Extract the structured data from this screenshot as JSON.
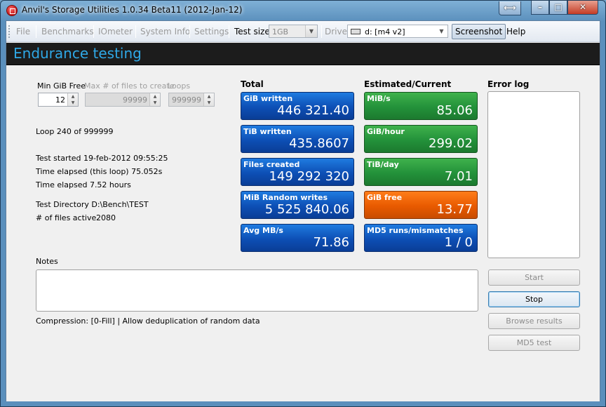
{
  "window": {
    "title": "Anvil's Storage Utilities 1.0.34 Beta11 (2012-Jan-12)",
    "controls": {
      "resize": "⟷",
      "minimize": "–",
      "maximize": "□",
      "close": "✕"
    }
  },
  "menu": {
    "file": "File",
    "benchmarks": "Benchmarks",
    "iometer": "IOmeter",
    "system_info": "System Info",
    "settings": "Settings",
    "test_size_label": "Test size",
    "test_size_value": "1GB",
    "drive_label": "Drive",
    "drive_value": "d: [m4 v2]",
    "screenshot": "Screenshot",
    "help": "Help"
  },
  "header": {
    "title": "Endurance testing"
  },
  "params": {
    "min_free_label": "Min GiB Free",
    "min_free_value": "12",
    "max_files_label": "Max # of files to create",
    "max_files_value": "99999",
    "loops_label": "Loops",
    "loops_value": "999999"
  },
  "status": {
    "loop": "Loop 240 of 999999",
    "test_started": "Test started 19-feb-2012 09:55:25",
    "elapsed_loop": "Time elapsed (this loop) 75.052s",
    "elapsed": "Time elapsed 7.52 hours",
    "test_dir": "Test Directory D:\\Bench\\TEST",
    "files_active_label": "# of files active",
    "files_active_value": "2080"
  },
  "total": {
    "heading": "Total",
    "tiles": [
      {
        "label": "GiB written",
        "value": "446 321.40"
      },
      {
        "label": "TiB written",
        "value": "435.8607"
      },
      {
        "label": "Files created",
        "value": "149 292 320"
      },
      {
        "label": "MiB Random writes",
        "value": "5 525 840.06"
      },
      {
        "label": "Avg MB/s",
        "value": "71.86"
      }
    ]
  },
  "estimated": {
    "heading": "Estimated/Current",
    "tiles": [
      {
        "label": "MiB/s",
        "value": "85.06"
      },
      {
        "label": "GiB/hour",
        "value": "299.02"
      },
      {
        "label": "TiB/day",
        "value": "7.01"
      },
      {
        "label": "GiB free",
        "value": "13.77"
      },
      {
        "label": "MD5 runs/mismatches",
        "value": "1 / 0"
      }
    ]
  },
  "error_log": {
    "heading": "Error log"
  },
  "notes": {
    "label": "Notes",
    "compression": "Compression: [0-Fill] | Allow deduplication of random data"
  },
  "buttons": {
    "start": "Start",
    "stop": "Stop",
    "browse": "Browse results",
    "md5": "MD5 test"
  },
  "colors": {
    "tile_blue": "#0d4fb5",
    "tile_green": "#23913a",
    "tile_orange": "#e85a00",
    "header_text": "#2fa8e6"
  }
}
